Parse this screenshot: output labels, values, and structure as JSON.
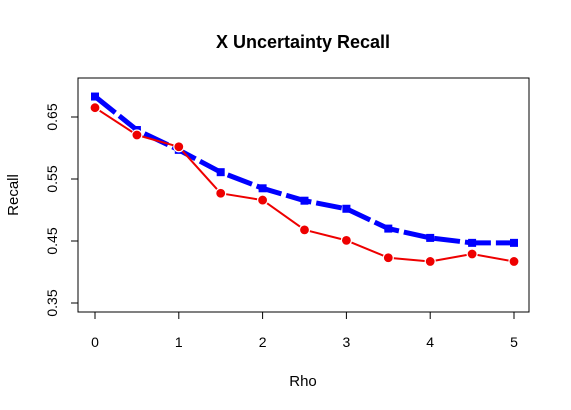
{
  "chart_data": {
    "type": "line",
    "title": "X Uncertainty Recall",
    "xlabel": "Rho",
    "ylabel": "Recall",
    "x": [
      0,
      0.5,
      1,
      1.5,
      2,
      2.5,
      3,
      3.5,
      4,
      4.5,
      5
    ],
    "xlim": [
      0,
      5
    ],
    "ylim": [
      0.35,
      0.65
    ],
    "xticks": [
      "0",
      "1",
      "2",
      "3",
      "4",
      "5"
    ],
    "yticks": [
      "0.35",
      "0.45",
      "0.55",
      "0.65"
    ],
    "grid": false,
    "series": [
      {
        "color": "#0000ff",
        "marker": "square",
        "line": "thick-dashed",
        "values": [
          0.683,
          0.629,
          0.597,
          0.561,
          0.535,
          0.515,
          0.502,
          0.47,
          0.455,
          0.447,
          0.447
        ]
      },
      {
        "color": "#ee0000",
        "marker": "circle",
        "line": "solid",
        "values": [
          0.665,
          0.621,
          0.602,
          0.527,
          0.516,
          0.468,
          0.451,
          0.423,
          0.417,
          0.429,
          0.417
        ]
      }
    ]
  }
}
